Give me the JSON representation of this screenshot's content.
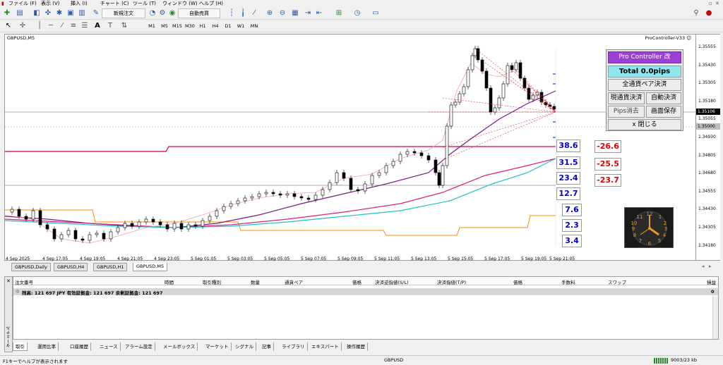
{
  "menu": [
    "ファイル (F)",
    "表示 (V)",
    "挿入 (I)",
    "チャート (C)",
    "ツール (T)",
    "ウィンドウ (W)",
    "ヘルプ (H)"
  ],
  "toolbar": {
    "new_order": "新規注文",
    "auto_trade": "自動売買",
    "timeframes": [
      "M1",
      "M5",
      "M15",
      "M30",
      "H1",
      "H4",
      "D1",
      "W1",
      "MN"
    ]
  },
  "chart": {
    "title": "GBPUSD,M5",
    "ea_name": "ProController-V33 ☺",
    "price_labels": [
      "1.35555",
      "1.35430",
      "1.35305",
      "1.35180",
      "1.35055",
      "1.34930",
      "1.34805",
      "1.34680",
      "1.34555",
      "1.34430",
      "1.34305",
      "1.34180"
    ],
    "bid_label": "1.35106",
    "ask_label": "1.35000",
    "time_labels": [
      "4 Sep 2025",
      "4 Sep 17:05",
      "4 Sep 19:05",
      "4 Sep 21:05",
      "4 Sep 23:05",
      "5 Sep 01:05",
      "5 Sep 03:05",
      "5 Sep 05:05",
      "5 Sep 07:05",
      "5 Sep 09:05",
      "5 Sep 11:05",
      "5 Sep 13:05",
      "5 Sep 15:05",
      "5 Sep 17:05",
      "5 Sep 19:05",
      "5 Sep 21:05"
    ],
    "fib_blue": [
      "38.6",
      "31.5",
      "23.4",
      "12.7",
      "7.6",
      "2.3",
      "3.4"
    ],
    "fib_red": [
      "-26.6",
      "-25.5",
      "-23.7"
    ]
  },
  "panel": {
    "title": "Pro Controller 改",
    "total": "Total   0.0pips",
    "close_all_pairs": "全通貨ペア決済",
    "close_current": "現通貨決済",
    "auto_close": "自動決済",
    "clear_pips": "Pips消去",
    "save_screen": "画面保存",
    "close": "x 閉じる"
  },
  "chart_tabs": [
    "GBPUSD,Daily",
    "GBPUSD,H4",
    "GBPUSD,H1",
    "GBPUSD,M5"
  ],
  "terminal": {
    "headers": [
      "注文番号",
      "時間",
      "取引種別",
      "数量",
      "通貨ペア",
      "価格",
      "決済逆指値(S/L)",
      "決済指値(T/P)",
      "価格",
      "手数料",
      "スワップ",
      "損益"
    ],
    "balance": "残高: 121 697 JPY  有効証拠金: 121 697  余剰証拠金: 121 697",
    "profit": "0",
    "side_label": "ターミナル"
  },
  "bottom_tabs": [
    "取引",
    "運用比率",
    "口座履歴",
    "ニュース",
    "アラーム設定",
    "メールボックス",
    "マーケット",
    "シグナル",
    "記事",
    "ライブラリ",
    "エキスパート",
    "操作履歴"
  ],
  "status": {
    "help": "F1キーでヘルプが表示されます",
    "symbol": "GBPUSD",
    "traffic": "9003/23 kb"
  },
  "colors": {
    "panel_title_bg": "#9b3fd6",
    "panel_total_bg": "#8fe6ee",
    "fib_blue": "#0000cc",
    "fib_red": "#e00000",
    "ma_purple": "#7a1a8a",
    "ma_magenta": "#e0207a",
    "ma_cyan": "#20c0c8",
    "orange_line": "#ff8c00",
    "red_line": "#d6003c"
  }
}
